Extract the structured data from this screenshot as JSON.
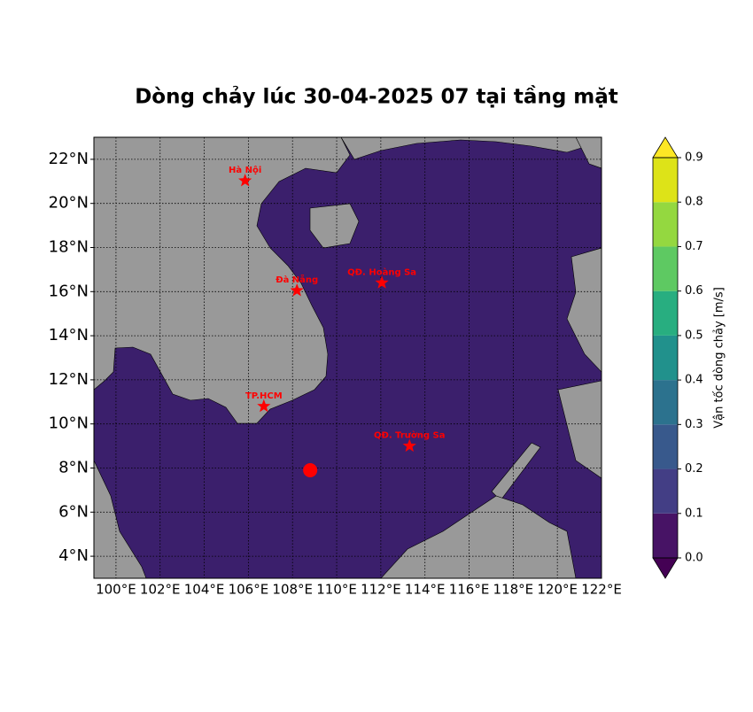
{
  "chart_data": {
    "type": "map",
    "title": "Dòng chảy lúc 30-04-2025 07 tại tầng mặt",
    "xlim": [
      99,
      122
    ],
    "ylim": [
      3,
      23
    ],
    "xticks": [
      {
        "value": 100,
        "label": "100°E"
      },
      {
        "value": 102,
        "label": "102°E"
      },
      {
        "value": 104,
        "label": "104°E"
      },
      {
        "value": 106,
        "label": "106°E"
      },
      {
        "value": 108,
        "label": "108°E"
      },
      {
        "value": 110,
        "label": "110°E"
      },
      {
        "value": 112,
        "label": "112°E"
      },
      {
        "value": 114,
        "label": "114°E"
      },
      {
        "value": 116,
        "label": "116°E"
      },
      {
        "value": 118,
        "label": "118°E"
      },
      {
        "value": 120,
        "label": "120°E"
      },
      {
        "value": 122,
        "label": "122°E"
      }
    ],
    "yticks": [
      {
        "value": 4,
        "label": "4°N"
      },
      {
        "value": 6,
        "label": "6°N"
      },
      {
        "value": 8,
        "label": "8°N"
      },
      {
        "value": 10,
        "label": "10°N"
      },
      {
        "value": 12,
        "label": "12°N"
      },
      {
        "value": 14,
        "label": "14°N"
      },
      {
        "value": 16,
        "label": "16°N"
      },
      {
        "value": 18,
        "label": "18°N"
      },
      {
        "value": 20,
        "label": "20°N"
      },
      {
        "value": 22,
        "label": "22°N"
      }
    ],
    "grid": true,
    "markers": [
      {
        "name": "Hà Nội",
        "lon": 105.85,
        "lat": 21.03
      },
      {
        "name": "Đà Nẵng",
        "lon": 108.2,
        "lat": 16.05
      },
      {
        "name": "TP.HCM",
        "lon": 106.7,
        "lat": 10.8
      },
      {
        "name": "QĐ. Hoàng Sa",
        "lon": 112.05,
        "lat": 16.4
      },
      {
        "name": "QĐ. Trường Sa",
        "lon": 113.3,
        "lat": 9.0
      }
    ],
    "marker_color": "#ff0000",
    "points": [
      {
        "lon": 108.8,
        "lat": 7.9
      }
    ],
    "colorbar": {
      "label": "Vận tốc dòng chảy [m/s]",
      "ticks": [
        {
          "value": 0,
          "label": "0.0"
        },
        0.1,
        0.2,
        0.3,
        0.4,
        0.5,
        0.6,
        0.7,
        0.8,
        0.9
      ],
      "colors": [
        "#471365",
        "#433e85",
        "#38598c",
        "#2c728e",
        "#21918c",
        "#28ae80",
        "#5ec962",
        "#94d840",
        "#dde318"
      ],
      "under_color": "#440154",
      "over_color": "#fde725"
    }
  }
}
